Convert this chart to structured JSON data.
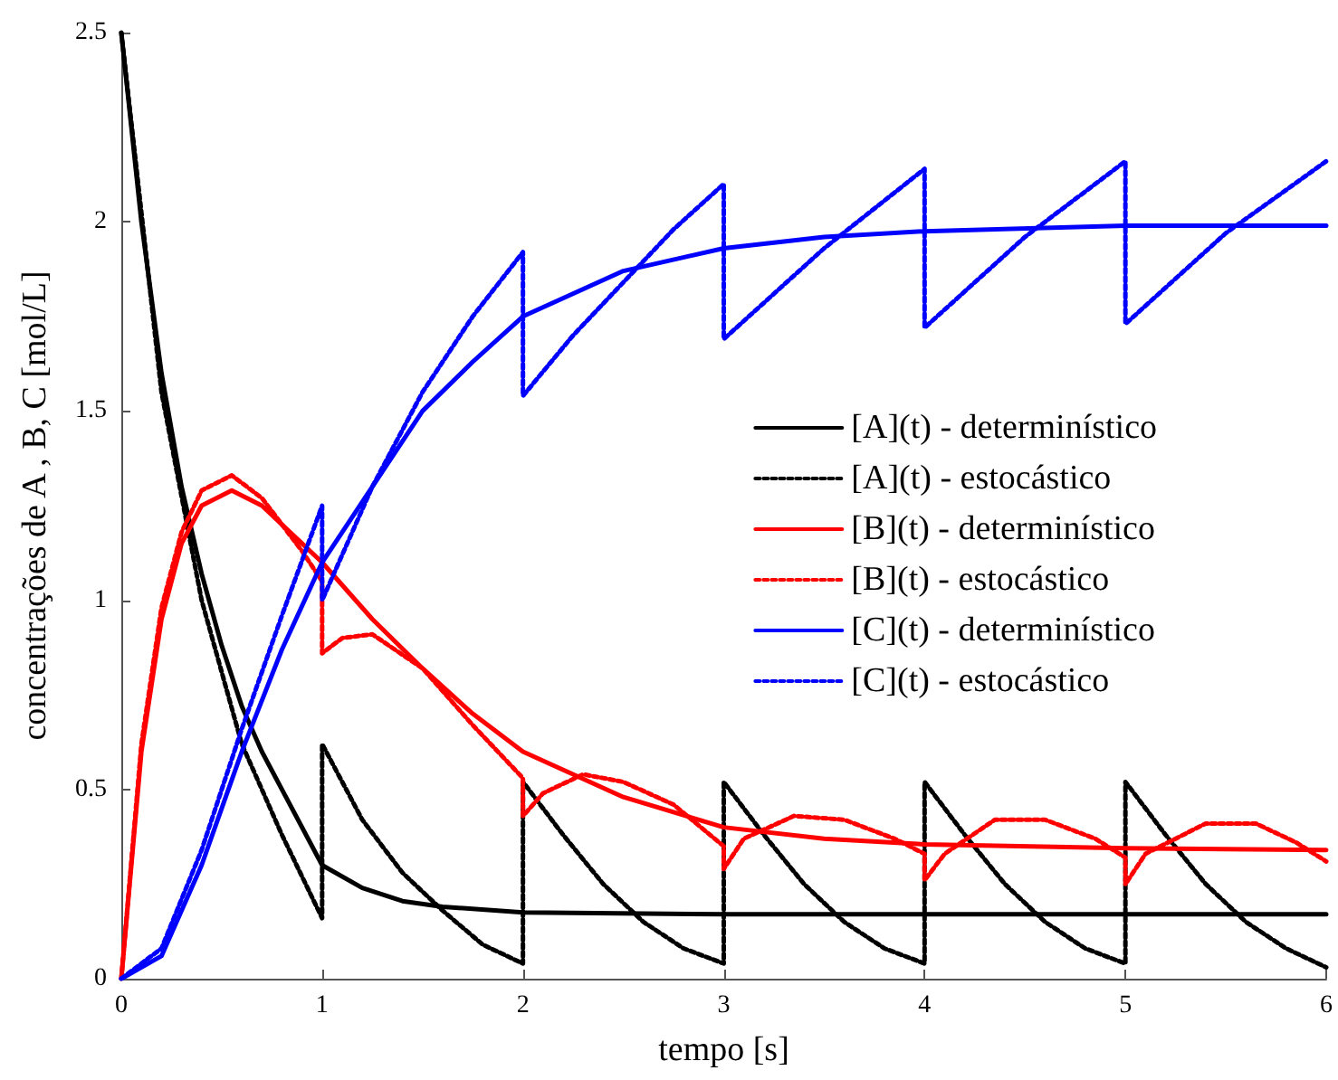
{
  "chart_data": {
    "type": "line",
    "xlabel": "tempo [s]",
    "ylabel": "concentrações de A , B, C [mol/L]",
    "xlim": [
      0,
      6
    ],
    "xticks": [
      0,
      1,
      2,
      3,
      4,
      5,
      6
    ],
    "ylim": [
      0,
      2.5
    ],
    "yticks": [
      0,
      0.5,
      1,
      1.5,
      2,
      2.5
    ],
    "grid": false,
    "legend": "right",
    "marker": "none",
    "series": [
      {
        "name": "[A](t) - determinístico",
        "color": "#000000",
        "line_style": "solid",
        "x": [
          0,
          0.1,
          0.2,
          0.3,
          0.4,
          0.5,
          0.6,
          0.7,
          0.8,
          1.0,
          1.2,
          1.4,
          1.6,
          2,
          3,
          4,
          6
        ],
        "values": [
          2.5,
          2.0,
          1.6,
          1.3,
          1.07,
          0.88,
          0.72,
          0.6,
          0.5,
          0.3,
          0.24,
          0.205,
          0.19,
          0.175,
          0.17,
          0.17,
          0.17
        ]
      },
      {
        "name": "[A](t) - estocástico",
        "color": "#000000",
        "line_style": "dotted",
        "x": [
          0,
          0.2,
          0.4,
          0.6,
          0.8,
          1,
          1,
          1.2,
          1.4,
          1.6,
          1.8,
          2,
          2,
          2.2,
          2.4,
          2.6,
          2.8,
          3,
          3,
          3.2,
          3.4,
          3.6,
          3.8,
          4,
          4,
          4.2,
          4.4,
          4.6,
          4.8,
          5,
          5,
          5.2,
          5.4,
          5.6,
          5.8,
          6
        ],
        "values": [
          2.5,
          1.55,
          1.0,
          0.62,
          0.38,
          0.16,
          0.62,
          0.42,
          0.28,
          0.18,
          0.09,
          0.04,
          0.52,
          0.38,
          0.25,
          0.15,
          0.08,
          0.04,
          0.52,
          0.38,
          0.25,
          0.15,
          0.08,
          0.04,
          0.52,
          0.38,
          0.25,
          0.15,
          0.08,
          0.04,
          0.52,
          0.38,
          0.25,
          0.15,
          0.08,
          0.03
        ]
      },
      {
        "name": "[B](t) - determinístico",
        "color": "#ff0000",
        "line_style": "solid",
        "x": [
          0,
          0.1,
          0.2,
          0.3,
          0.4,
          0.55,
          0.7,
          0.9,
          1,
          1.25,
          1.5,
          1.75,
          2,
          2.5,
          3,
          3.5,
          4,
          5,
          6
        ],
        "values": [
          0,
          0.6,
          0.95,
          1.15,
          1.25,
          1.29,
          1.25,
          1.15,
          1.1,
          0.95,
          0.82,
          0.7,
          0.6,
          0.48,
          0.4,
          0.37,
          0.355,
          0.345,
          0.34
        ]
      },
      {
        "name": "[B](t) - estocástico",
        "color": "#ff0000",
        "line_style": "dotted",
        "x": [
          0,
          0.1,
          0.2,
          0.3,
          0.4,
          0.55,
          0.7,
          0.9,
          1,
          1,
          1.1,
          1.25,
          1.5,
          1.75,
          2,
          2,
          2.1,
          2.3,
          2.5,
          2.75,
          3,
          3,
          3.1,
          3.35,
          3.6,
          3.85,
          4,
          4,
          4.1,
          4.35,
          4.6,
          4.85,
          5,
          5,
          5.1,
          5.4,
          5.65,
          5.85,
          6
        ],
        "values": [
          0,
          0.62,
          0.98,
          1.18,
          1.29,
          1.33,
          1.27,
          1.13,
          1.05,
          0.86,
          0.9,
          0.91,
          0.82,
          0.67,
          0.53,
          0.43,
          0.49,
          0.54,
          0.52,
          0.46,
          0.35,
          0.29,
          0.37,
          0.43,
          0.42,
          0.37,
          0.33,
          0.26,
          0.33,
          0.42,
          0.42,
          0.37,
          0.32,
          0.25,
          0.33,
          0.41,
          0.41,
          0.36,
          0.31
        ]
      },
      {
        "name": "[C](t) - determinístico",
        "color": "#0000ff",
        "line_style": "solid",
        "x": [
          0,
          0.2,
          0.4,
          0.6,
          0.8,
          1,
          1.25,
          1.5,
          1.75,
          2,
          2.5,
          3,
          3.5,
          4,
          5,
          6
        ],
        "values": [
          0,
          0.06,
          0.3,
          0.6,
          0.87,
          1.1,
          1.3,
          1.5,
          1.63,
          1.75,
          1.87,
          1.93,
          1.96,
          1.975,
          1.99,
          1.99
        ]
      },
      {
        "name": "[C](t) - estocástico",
        "color": "#0000ff",
        "line_style": "dotted",
        "x": [
          0,
          0.2,
          0.4,
          0.6,
          0.8,
          1,
          1,
          1.25,
          1.5,
          1.75,
          2,
          2,
          2.25,
          2.5,
          2.75,
          3,
          3,
          3.5,
          4,
          4,
          4.5,
          5,
          5,
          5.5,
          6
        ],
        "values": [
          0,
          0.08,
          0.34,
          0.66,
          0.96,
          1.25,
          1.0,
          1.3,
          1.55,
          1.75,
          1.92,
          1.54,
          1.7,
          1.84,
          1.98,
          2.1,
          1.69,
          1.93,
          2.14,
          1.72,
          1.96,
          2.16,
          1.73,
          1.97,
          2.16
        ]
      }
    ]
  }
}
